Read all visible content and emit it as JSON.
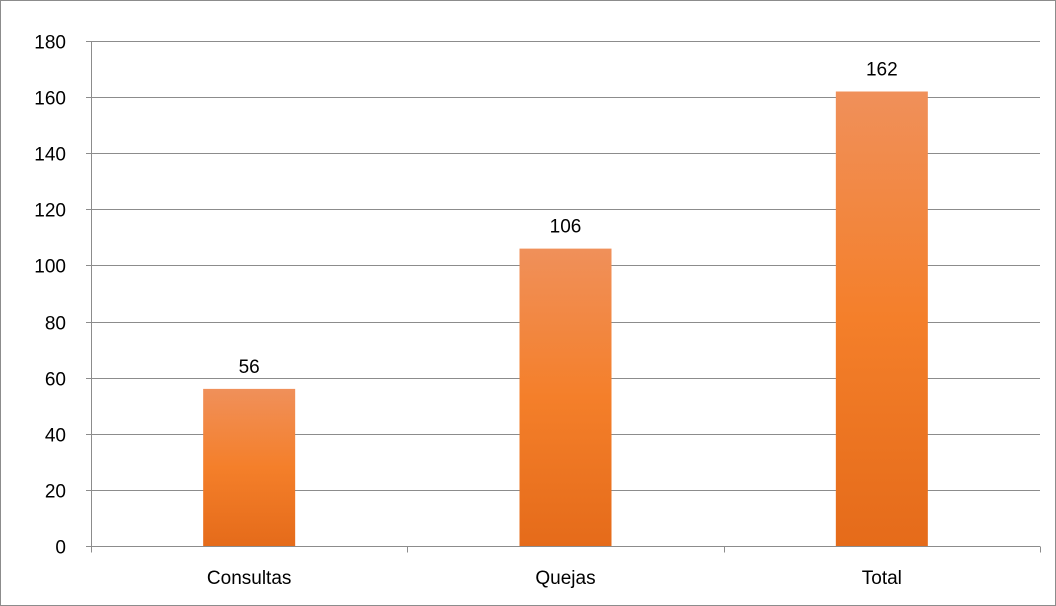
{
  "chart_data": {
    "type": "bar",
    "title": "",
    "xlabel": "",
    "ylabel": "",
    "categories": [
      "Consultas",
      "Quejas",
      "Total"
    ],
    "values": [
      56,
      106,
      162
    ],
    "data_labels": [
      "56",
      "106",
      "162"
    ],
    "ylim": [
      0,
      180
    ],
    "yticks": [
      0,
      20,
      40,
      60,
      80,
      100,
      120,
      140,
      160,
      180
    ],
    "ytick_labels": [
      "0",
      "20",
      "40",
      "60",
      "80",
      "100",
      "120",
      "140",
      "160",
      "180"
    ],
    "grid": true,
    "legend": "none",
    "colors": {
      "bar_top": "#f0905a",
      "bar_mid": "#f47f2a",
      "bar_bottom": "#e56b1a",
      "gridline": "#8c8c8c",
      "axis": "#8c8c8c",
      "border": "#8c8c8c"
    }
  }
}
